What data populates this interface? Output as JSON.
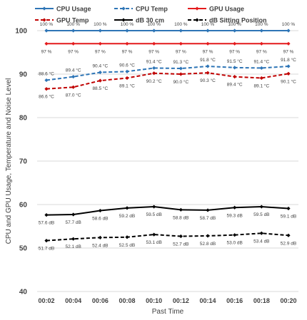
{
  "chart_data": {
    "type": "line",
    "title": "",
    "xlabel": "Past Time",
    "ylabel": "CPU and GPU Usage, Temperature and Noise Level",
    "ylim": [
      40,
      100
    ],
    "yticks": [
      40,
      50,
      60,
      70,
      80,
      90,
      100
    ],
    "grid": true,
    "legend_position": "top",
    "categories": [
      "00:02",
      "00:04",
      "00:06",
      "00:08",
      "00:10",
      "00:12",
      "00:14",
      "00:16",
      "00:18",
      "00:20"
    ],
    "series": [
      {
        "name": "CPU Usage",
        "color": "#2e75b6",
        "dash": "solid",
        "marker": "diamond",
        "label_position": "above",
        "values": [
          100,
          100,
          100,
          100,
          100,
          100,
          100,
          100,
          100,
          100
        ],
        "labels": [
          "100 %",
          "100 %",
          "100 %",
          "100 %",
          "100 %",
          "100 %",
          "100 %",
          "100 %",
          "100 %",
          "100 %"
        ]
      },
      {
        "name": "CPU Temp",
        "color": "#2e75b6",
        "dash": "dashed",
        "marker": "diamond",
        "label_position": "above",
        "values": [
          88.6,
          89.4,
          90.4,
          90.6,
          91.4,
          91.3,
          91.8,
          91.5,
          91.4,
          91.8
        ],
        "labels": [
          "88.6 °C",
          "89.4 °C",
          "90.4 °C",
          "90.6 °C",
          "91.4 °C",
          "91.3 °C",
          "91.8 °C",
          "91.5 °C",
          "91.4 °C",
          "91.8 °C"
        ]
      },
      {
        "name": "GPU Usage",
        "color": "#e41a1c",
        "dash": "solid",
        "marker": "diamond",
        "label_position": "below",
        "values": [
          97,
          97,
          97,
          97,
          97,
          97,
          97,
          97,
          97,
          97
        ],
        "labels": [
          "97 %",
          "97 %",
          "97 %",
          "97 %",
          "97 %",
          "97 %",
          "97 %",
          "97 %",
          "97 %",
          "97 %"
        ]
      },
      {
        "name": "GPU Temp",
        "color": "#c00000",
        "dash": "dashed",
        "marker": "diamond",
        "label_position": "below",
        "values": [
          86.6,
          87.0,
          88.5,
          89.1,
          90.2,
          90.0,
          90.3,
          89.4,
          89.1,
          90.1
        ],
        "labels": [
          "86.6 °C",
          "87.0 °C",
          "88.5 °C",
          "89.1 °C",
          "90.2 °C",
          "90.0 °C",
          "90.3 °C",
          "89.4 °C",
          "89.1 °C",
          "90.1 °C"
        ]
      },
      {
        "name": "dB 30 cm",
        "color": "#000000",
        "dash": "solid",
        "marker": "diamond",
        "label_position": "below",
        "values": [
          57.6,
          57.7,
          58.6,
          59.2,
          59.5,
          58.8,
          58.7,
          59.3,
          59.5,
          59.1
        ],
        "labels": [
          "57.6 dB",
          "57.7 dB",
          "58.6 dB",
          "59.2 dB",
          "59.5 dB",
          "58.8 dB",
          "58.7 dB",
          "59.3 dB",
          "59.5 dB",
          "59.1 dB"
        ]
      },
      {
        "name": "dB Sitting Position",
        "color": "#000000",
        "dash": "dashed",
        "marker": "diamond",
        "label_position": "below",
        "values": [
          51.7,
          52.1,
          52.4,
          52.5,
          53.1,
          52.7,
          52.8,
          53.0,
          53.4,
          52.9
        ],
        "labels": [
          "51.7 dB",
          "52.1 dB",
          "52.4 dB",
          "52.5 dB",
          "53.1 dB",
          "52.7 dB",
          "52.8 dB",
          "53.0 dB",
          "53.4 dB",
          "52.9 dB"
        ]
      }
    ]
  }
}
